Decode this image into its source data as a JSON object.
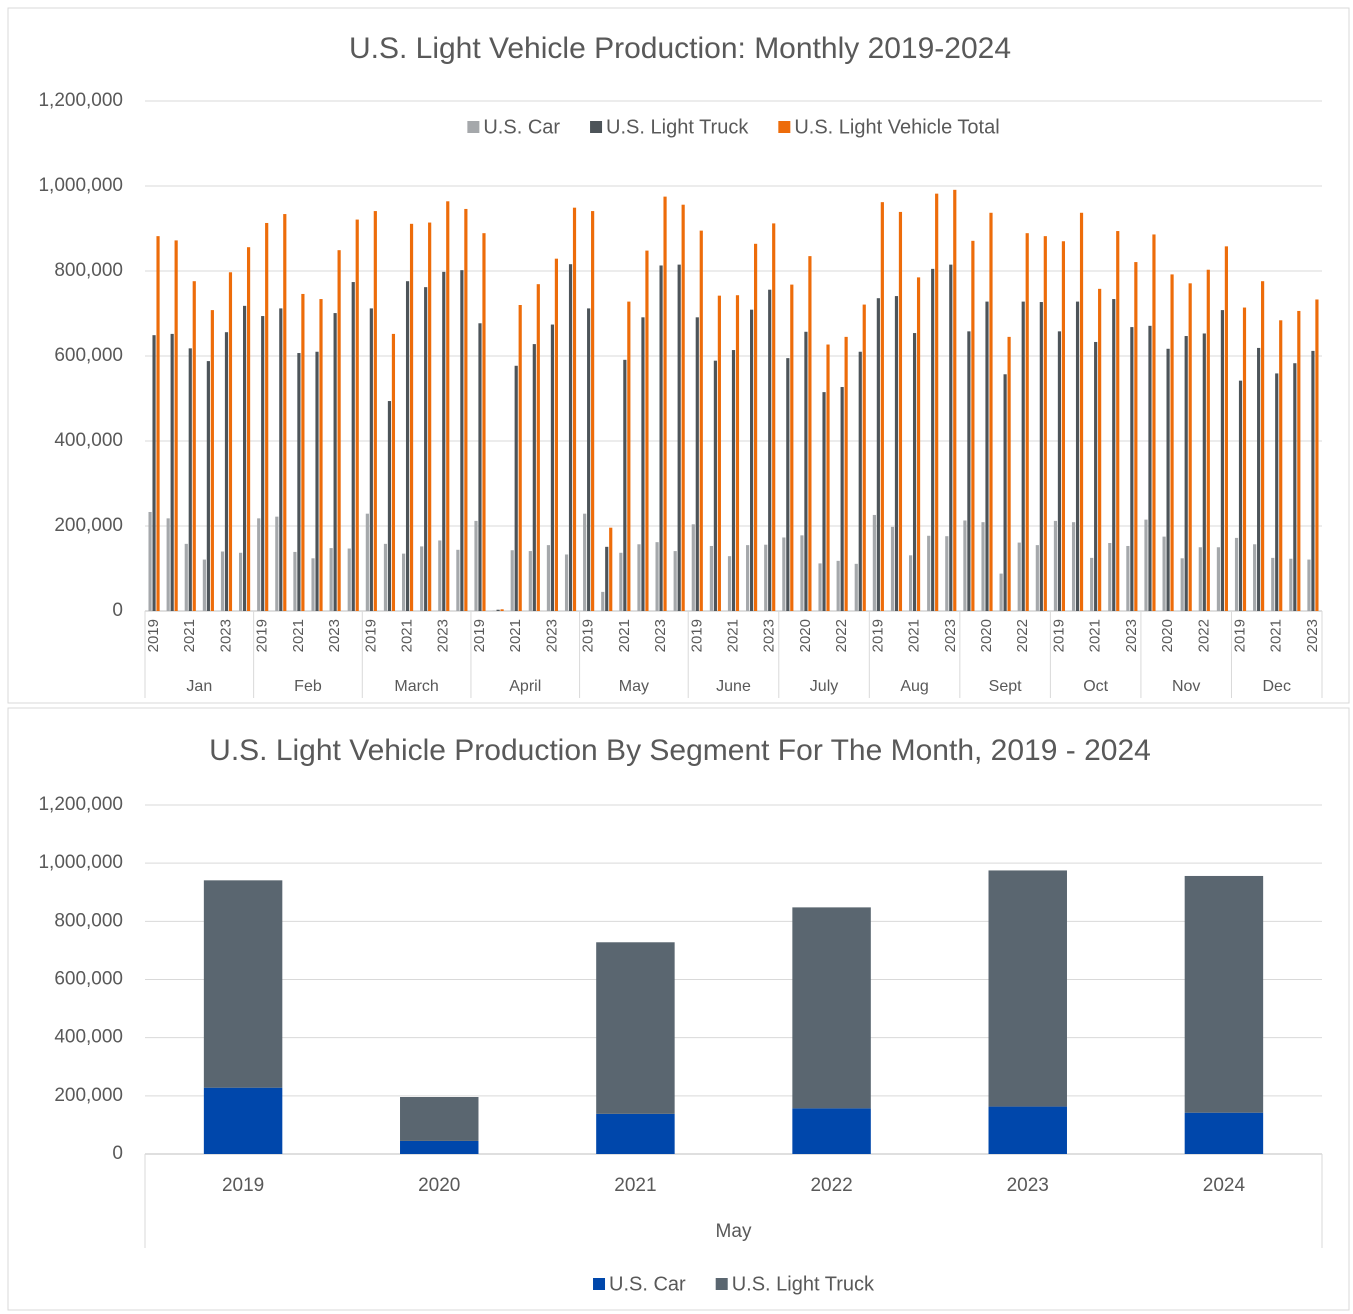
{
  "chart_data": [
    {
      "type": "grouped_bar",
      "title": "U.S. Light Vehicle Production: Monthly 2019-2024",
      "groups": [
        {
          "name": "Jan",
          "categories": [
            "2019",
            null,
            "2021",
            null,
            "2023",
            null
          ]
        },
        {
          "name": "Feb",
          "categories": [
            "2019",
            null,
            "2021",
            null,
            "2023",
            null
          ]
        },
        {
          "name": "March",
          "categories": [
            "2019",
            null,
            "2021",
            null,
            "2023",
            null
          ]
        },
        {
          "name": "April",
          "categories": [
            "2019",
            null,
            "2021",
            null,
            "2023",
            null
          ]
        },
        {
          "name": "May",
          "categories": [
            "2019",
            null,
            "2021",
            null,
            "2023",
            null
          ]
        },
        {
          "name": "June",
          "categories": [
            "2019",
            null,
            "2021",
            null,
            "2023"
          ]
        },
        {
          "name": "July",
          "categories": [
            null,
            "2020",
            null,
            "2022",
            null
          ]
        },
        {
          "name": "Aug",
          "categories": [
            "2019",
            null,
            "2021",
            null,
            "2023"
          ]
        },
        {
          "name": "Sept",
          "categories": [
            null,
            "2020",
            null,
            "2022",
            null
          ]
        },
        {
          "name": "Oct",
          "categories": [
            "2019",
            null,
            "2021",
            null,
            "2023"
          ]
        },
        {
          "name": "Nov",
          "categories": [
            null,
            "2020",
            null,
            "2022",
            null
          ]
        },
        {
          "name": "Dec",
          "categories": [
            "2019",
            null,
            "2021",
            null,
            "2023"
          ]
        }
      ],
      "series": [
        {
          "name": "U.S. Car",
          "color": "#a5a8ab",
          "values": [
            233000,
            218000,
            158000,
            121000,
            140000,
            137000,
            218000,
            222000,
            139000,
            124000,
            148000,
            147000,
            229000,
            158000,
            135000,
            152000,
            166000,
            144000,
            212000,
            1000,
            143000,
            141000,
            155000,
            133000,
            229000,
            45000,
            137000,
            157000,
            162000,
            141000,
            204000,
            153000,
            129000,
            155000,
            156000,
            173000,
            178000,
            112000,
            118000,
            111000,
            226000,
            198000,
            131000,
            177000,
            176000,
            213000,
            209000,
            88000,
            161000,
            155000,
            212000,
            209000,
            125000,
            160000,
            153000,
            215000,
            175000,
            124000,
            150000,
            150000,
            172000,
            157000,
            125000,
            123000,
            121000
          ]
        },
        {
          "name": "U.S. Light Truck",
          "color": "#4d5459",
          "values": [
            649000,
            652000,
            618000,
            588000,
            656000,
            718000,
            694000,
            712000,
            607000,
            610000,
            701000,
            774000,
            712000,
            494000,
            776000,
            762000,
            798000,
            802000,
            677000,
            3000,
            577000,
            628000,
            674000,
            816000,
            712000,
            151000,
            591000,
            691000,
            813000,
            815000,
            691000,
            589000,
            614000,
            709000,
            756000,
            595000,
            657000,
            515000,
            527000,
            610000,
            736000,
            741000,
            654000,
            805000,
            815000,
            658000,
            728000,
            557000,
            728000,
            727000,
            658000,
            728000,
            633000,
            734000,
            668000,
            671000,
            617000,
            647000,
            653000,
            708000,
            542000,
            619000,
            559000,
            583000,
            612000
          ]
        },
        {
          "name": "U.S. Light Vehicle Total",
          "color": "#ed6c0a",
          "values": [
            882000,
            872000,
            776000,
            708000,
            797000,
            856000,
            913000,
            934000,
            746000,
            734000,
            849000,
            921000,
            941000,
            652000,
            911000,
            914000,
            964000,
            946000,
            889000,
            4000,
            720000,
            769000,
            829000,
            949000,
            941000,
            196000,
            728000,
            848000,
            975000,
            956000,
            895000,
            742000,
            743000,
            864000,
            912000,
            768000,
            835000,
            627000,
            645000,
            721000,
            962000,
            939000,
            785000,
            982000,
            991000,
            871000,
            937000,
            645000,
            889000,
            882000,
            870000,
            937000,
            758000,
            894000,
            821000,
            886000,
            792000,
            771000,
            803000,
            858000,
            714000,
            776000,
            684000,
            706000,
            733000
          ]
        }
      ],
      "ylim": [
        0,
        1200000
      ],
      "yticks": [
        0,
        {
          "value": 200000,
          "label": "200,000"
        },
        {
          "value": 400000,
          "label": "400,000"
        },
        {
          "value": 600000,
          "label": "600,000"
        },
        {
          "value": 800000,
          "label": "800,000"
        },
        {
          "value": 1000000,
          "label": "1,000,000"
        },
        {
          "value": 1200000,
          "label": "1,200,000"
        }
      ],
      "grid": true,
      "legend": "top"
    },
    {
      "type": "stacked_bar",
      "title": "U.S. Light Vehicle Production By Segment For The Month, 2019 - 2024",
      "xlabel": "May",
      "categories": [
        "2019",
        "2020",
        "2021",
        "2022",
        "2023",
        "2024"
      ],
      "series": [
        {
          "name": "U.S. Car",
          "color": "#0047ab",
          "values": [
            228000,
            45000,
            138000,
            157000,
            163000,
            142000
          ]
        },
        {
          "name": "U.S. Light Truck",
          "color": "#5a6670",
          "values": [
            713000,
            151000,
            590000,
            691000,
            812000,
            814000
          ]
        }
      ],
      "ylim": [
        0,
        1200000
      ],
      "yticks": [
        0,
        {
          "value": 200000,
          "label": "200,000"
        },
        {
          "value": 400000,
          "label": "400,000"
        },
        {
          "value": 600000,
          "label": "600,000"
        },
        {
          "value": 800000,
          "label": "800,000"
        },
        {
          "value": 1000000,
          "label": "1,000,000"
        },
        {
          "value": 1200000,
          "label": "1,200,000"
        }
      ],
      "grid": true,
      "legend": "bottom"
    }
  ]
}
